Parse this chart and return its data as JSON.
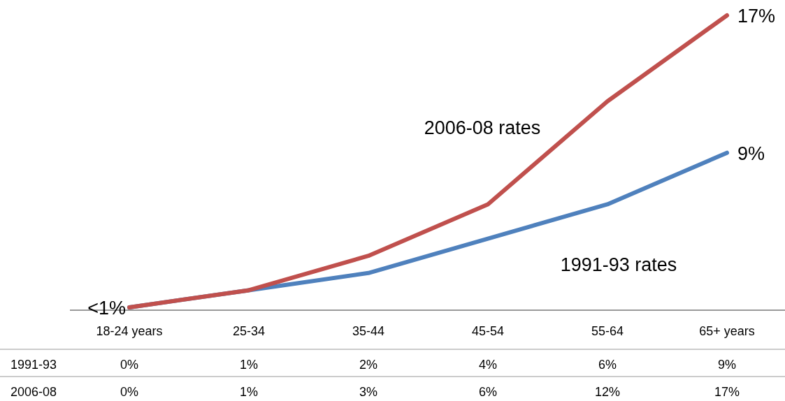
{
  "chart_data": {
    "type": "line",
    "categories": [
      "18-24 years",
      "25-34",
      "35-44",
      "45-54",
      "55-64",
      "65+ years"
    ],
    "series": [
      {
        "name": "1991-93 rates",
        "color": "#4f81bd",
        "values": [
          0,
          1,
          2,
          4,
          6,
          9
        ],
        "value_labels": [
          "0%",
          "1%",
          "2%",
          "4%",
          "6%",
          "9%"
        ]
      },
      {
        "name": "2006-08 rates",
        "color": "#c0504d",
        "values": [
          0,
          1,
          3,
          6,
          12,
          17
        ],
        "value_labels": [
          "0%",
          "1%",
          "3%",
          "6%",
          "12%",
          "17%"
        ]
      }
    ],
    "annotations": [
      "1991-93",
      "2006-08",
      {
        "text": "<1%",
        "x": "18-24 years",
        "y": 0
      },
      {
        "text": "17%",
        "x": "65+ years",
        "y": 17
      },
      {
        "text": "9%",
        "x": "65+ years",
        "y": 9
      }
    ]
  }
}
